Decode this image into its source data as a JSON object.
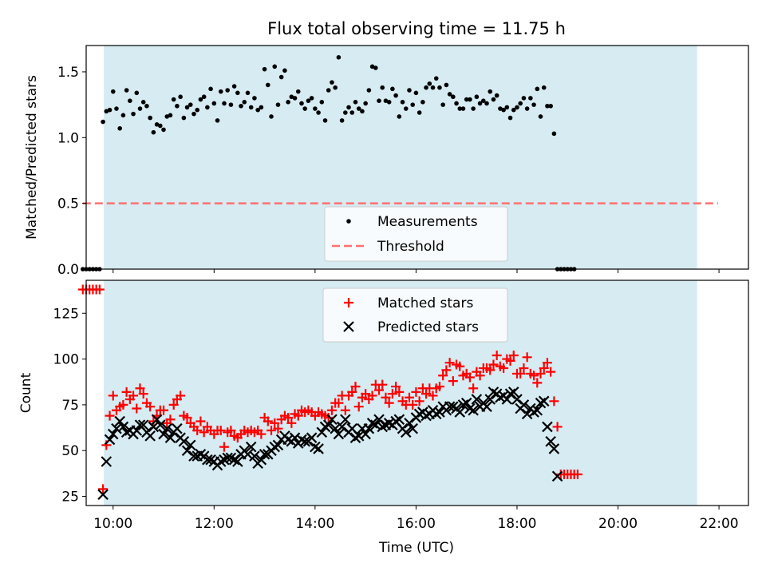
{
  "title": "Flux total observing time = 11.75 h",
  "chart_data": [
    {
      "type": "scatter",
      "ylabel": "Matched/Predicted stars",
      "xlabel": "",
      "xlim": [
        "09:28",
        "22:35"
      ],
      "ylim": [
        0,
        1.7
      ],
      "yticks": [
        0.0,
        0.5,
        1.0,
        1.5
      ],
      "ytick_labels": [
        "0.0",
        "0.5",
        "1.0",
        "1.5"
      ],
      "shaded_interval": [
        "09:49",
        "21:34"
      ],
      "shade_color": "#add8e6",
      "threshold": {
        "name": "Threshold",
        "value": 0.5,
        "from": "09:24",
        "to": "21:59",
        "color": "#ff7070"
      },
      "legend": {
        "position": "lower center",
        "entries": [
          "Measurements",
          "Threshold"
        ]
      },
      "series": [
        {
          "name": "Measurements",
          "marker": "dot",
          "color": "#000000",
          "x_start": "09:24",
          "x_step_minutes": 4,
          "values": [
            0,
            0,
            0,
            0,
            0,
            0,
            1.12,
            1.2,
            1.21,
            1.35,
            1.22,
            1.07,
            1.17,
            1.36,
            1.28,
            1.18,
            1.34,
            1.22,
            1.27,
            1.24,
            1.15,
            1.04,
            1.1,
            1.09,
            1.06,
            1.16,
            1.17,
            1.29,
            1.24,
            1.31,
            1.15,
            1.23,
            1.25,
            1.18,
            1.21,
            1.29,
            1.31,
            1.23,
            1.37,
            1.26,
            1.13,
            1.35,
            1.26,
            1.36,
            1.25,
            1.39,
            1.34,
            1.24,
            1.27,
            1.34,
            1.23,
            1.3,
            1.21,
            1.23,
            1.52,
            1.4,
            1.16,
            1.54,
            1.25,
            1.46,
            1.51,
            1.27,
            1.31,
            1.3,
            1.35,
            1.26,
            1.22,
            1.28,
            1.3,
            1.22,
            1.19,
            1.27,
            1.13,
            1.36,
            1.42,
            1.38,
            1.61,
            1.13,
            1.19,
            1.23,
            1.19,
            1.27,
            1.22,
            1.2,
            1.26,
            1.36,
            1.54,
            1.53,
            1.28,
            1.38,
            1.28,
            1.27,
            1.37,
            1.32,
            1.16,
            1.27,
            1.22,
            1.36,
            1.25,
            1.34,
            1.19,
            1.27,
            1.38,
            1.41,
            1.38,
            1.45,
            1.38,
            1.25,
            1.4,
            1.33,
            1.31,
            1.26,
            1.22,
            1.22,
            1.29,
            1.29,
            1.22,
            1.31,
            1.26,
            1.28,
            1.26,
            1.35,
            1.29,
            1.32,
            1.22,
            1.21,
            1.23,
            1.15,
            1.21,
            1.23,
            1.26,
            1.3,
            1.22,
            1.3,
            1.25,
            1.37,
            1.16,
            1.38,
            1.24,
            1.24,
            1.03,
            0,
            0,
            0,
            0,
            0,
            0
          ]
        }
      ]
    },
    {
      "type": "scatter",
      "ylabel": "Count",
      "xlabel": "Time (UTC)",
      "xlim": [
        "09:28",
        "22:35"
      ],
      "ylim": [
        20,
        143
      ],
      "yticks": [
        25,
        50,
        75,
        100,
        125
      ],
      "ytick_labels": [
        "25",
        "50",
        "75",
        "100",
        "125"
      ],
      "xticks": [
        "10:00",
        "12:00",
        "14:00",
        "16:00",
        "18:00",
        "20:00",
        "22:00"
      ],
      "shaded_interval": [
        "09:49",
        "21:34"
      ],
      "shade_color": "#add8e6",
      "legend": {
        "position": "upper center",
        "entries": [
          "Matched stars",
          "Predicted stars"
        ]
      },
      "series": [
        {
          "name": "Matched stars",
          "marker": "plus",
          "color": "#ff0000",
          "x_start": "09:24",
          "x_step_minutes": 4,
          "values": [
            138,
            138,
            138,
            138,
            138,
            138,
            29,
            53,
            69,
            80,
            72,
            74,
            75,
            82,
            78,
            80,
            73,
            84,
            81,
            76,
            74,
            66,
            69,
            72,
            72,
            65,
            67,
            75,
            78,
            80,
            69,
            68,
            65,
            63,
            61,
            66,
            60,
            63,
            61,
            59,
            61,
            61,
            52,
            60,
            61,
            58,
            57,
            59,
            61,
            60,
            61,
            60,
            61,
            59,
            68,
            66,
            61,
            65,
            62,
            67,
            69,
            68,
            65,
            70,
            69,
            72,
            71,
            72,
            71,
            69,
            71,
            70,
            69,
            68,
            72,
            76,
            76,
            80,
            72,
            80,
            82,
            85,
            74,
            79,
            81,
            78,
            80,
            86,
            83,
            86,
            79,
            76,
            81,
            85,
            82,
            77,
            75,
            79,
            75,
            82,
            77,
            84,
            81,
            84,
            80,
            84,
            85,
            91,
            94,
            98,
            88,
            97,
            96,
            91,
            92,
            90,
            84,
            93,
            91,
            95,
            95,
            94,
            97,
            102,
            96,
            95,
            100,
            99,
            102,
            92,
            92,
            95,
            101,
            92,
            91,
            87,
            92,
            95,
            98,
            93,
            77,
            63,
            37,
            37,
            37,
            37,
            37,
            37
          ]
        },
        {
          "name": "Predicted stars",
          "marker": "x",
          "color": "#000000",
          "x_start": "09:24",
          "x_step_minutes": 4,
          "values": [
            null,
            null,
            null,
            null,
            null,
            null,
            26,
            44,
            56,
            59,
            62,
            66,
            63,
            60,
            61,
            59,
            61,
            64,
            64,
            60,
            58,
            63,
            67,
            64,
            59,
            62,
            57,
            60,
            62,
            57,
            55,
            50,
            53,
            47,
            47,
            48,
            47,
            45,
            45,
            44,
            42,
            44,
            45,
            46,
            46,
            45,
            44,
            48,
            50,
            48,
            52,
            47,
            43,
            45,
            48,
            48,
            50,
            52,
            53,
            56,
            58,
            56,
            55,
            57,
            54,
            56,
            55,
            55,
            57,
            52,
            51,
            60,
            63,
            64,
            67,
            62,
            59,
            63,
            67,
            60,
            62,
            57,
            58,
            62,
            59,
            62,
            65,
            64,
            67,
            63,
            64,
            65,
            64,
            66,
            67,
            62,
            60,
            65,
            62,
            68,
            70,
            71,
            69,
            70,
            72,
            70,
            71,
            74,
            72,
            74,
            74,
            73,
            71,
            75,
            76,
            73,
            72,
            78,
            74,
            76,
            74,
            78,
            82,
            81,
            79,
            80,
            78,
            81,
            82,
            78,
            73,
            75,
            70,
            73,
            71,
            72,
            76,
            77,
            63,
            55,
            51,
            36
          ]
        }
      ]
    }
  ]
}
